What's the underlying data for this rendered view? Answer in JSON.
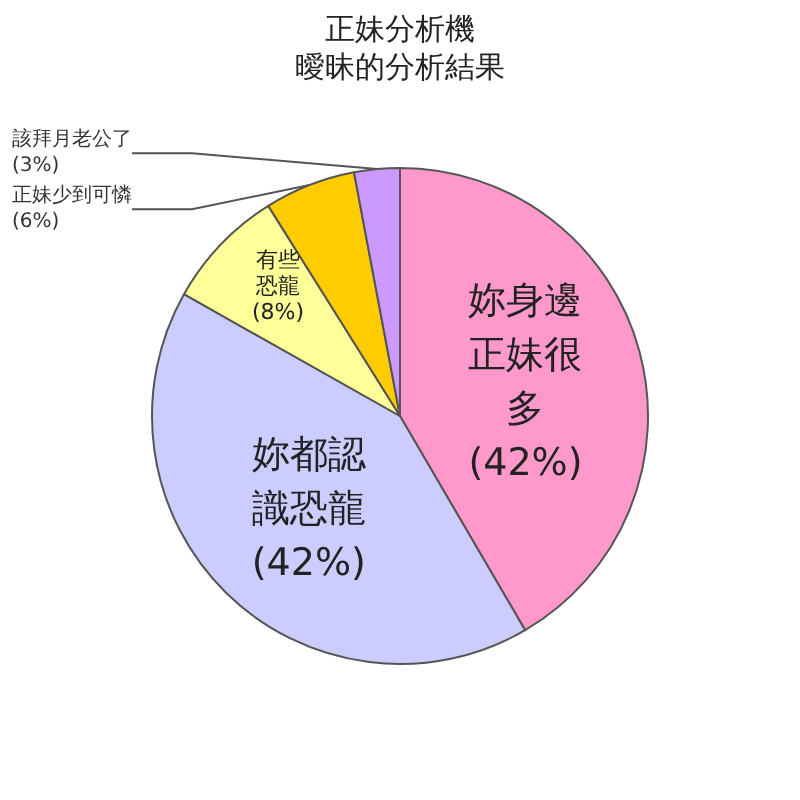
{
  "chart_data": {
    "type": "pie",
    "title": "正妹分析機",
    "subtitle": "曖昧的分析結果",
    "categories": [
      "妳身邊正妹很多",
      "妳都認識恐龍",
      "有些恐龍",
      "正妹少到可憐",
      "該拜月老公了"
    ],
    "values": [
      42,
      42,
      8,
      6,
      3
    ],
    "value_labels": [
      "(42%)",
      "(42%)",
      "(8%)",
      "(6%)",
      "(3%)"
    ],
    "colors": [
      "#ff99cc",
      "#ccccff",
      "#ffff99",
      "#ffcc00",
      "#cc99ff"
    ],
    "legend": false
  }
}
